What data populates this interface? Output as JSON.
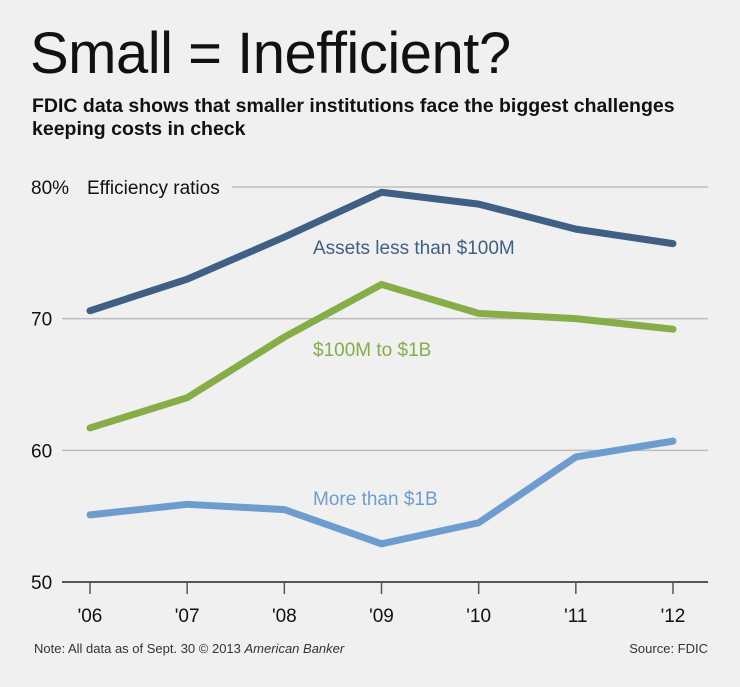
{
  "title": "Small = Inefficient?",
  "subtitle": "FDIC data shows that smaller institutions face the biggest challenges keeping costs in check",
  "footer": {
    "note": "Note: All data as of Sept. 30  © 2013 ",
    "brand": "American Banker",
    "source": "Source: FDIC"
  },
  "chart_data": {
    "type": "line",
    "title": "",
    "ylabel": "Efficiency ratios",
    "categories": [
      "'06",
      "'07",
      "'08",
      "'09",
      "'10",
      "'11",
      "'12"
    ],
    "ylim": [
      50,
      80
    ],
    "yticks": [
      "80%",
      "70",
      "60",
      "50"
    ],
    "grid": true,
    "series": [
      {
        "name": "Assets less than $100M",
        "color": "#3f5f85",
        "values": [
          70.6,
          73.0,
          76.2,
          79.6,
          78.7,
          76.8,
          75.7
        ]
      },
      {
        "name": "$100M to $1B",
        "color": "#86ad48",
        "values": [
          61.7,
          64.0,
          68.6,
          72.6,
          70.4,
          70.0,
          69.2
        ]
      },
      {
        "name": "More than $1B",
        "color": "#6f9ccf",
        "values": [
          55.1,
          55.9,
          55.5,
          52.9,
          54.5,
          59.5,
          60.7
        ]
      }
    ]
  }
}
